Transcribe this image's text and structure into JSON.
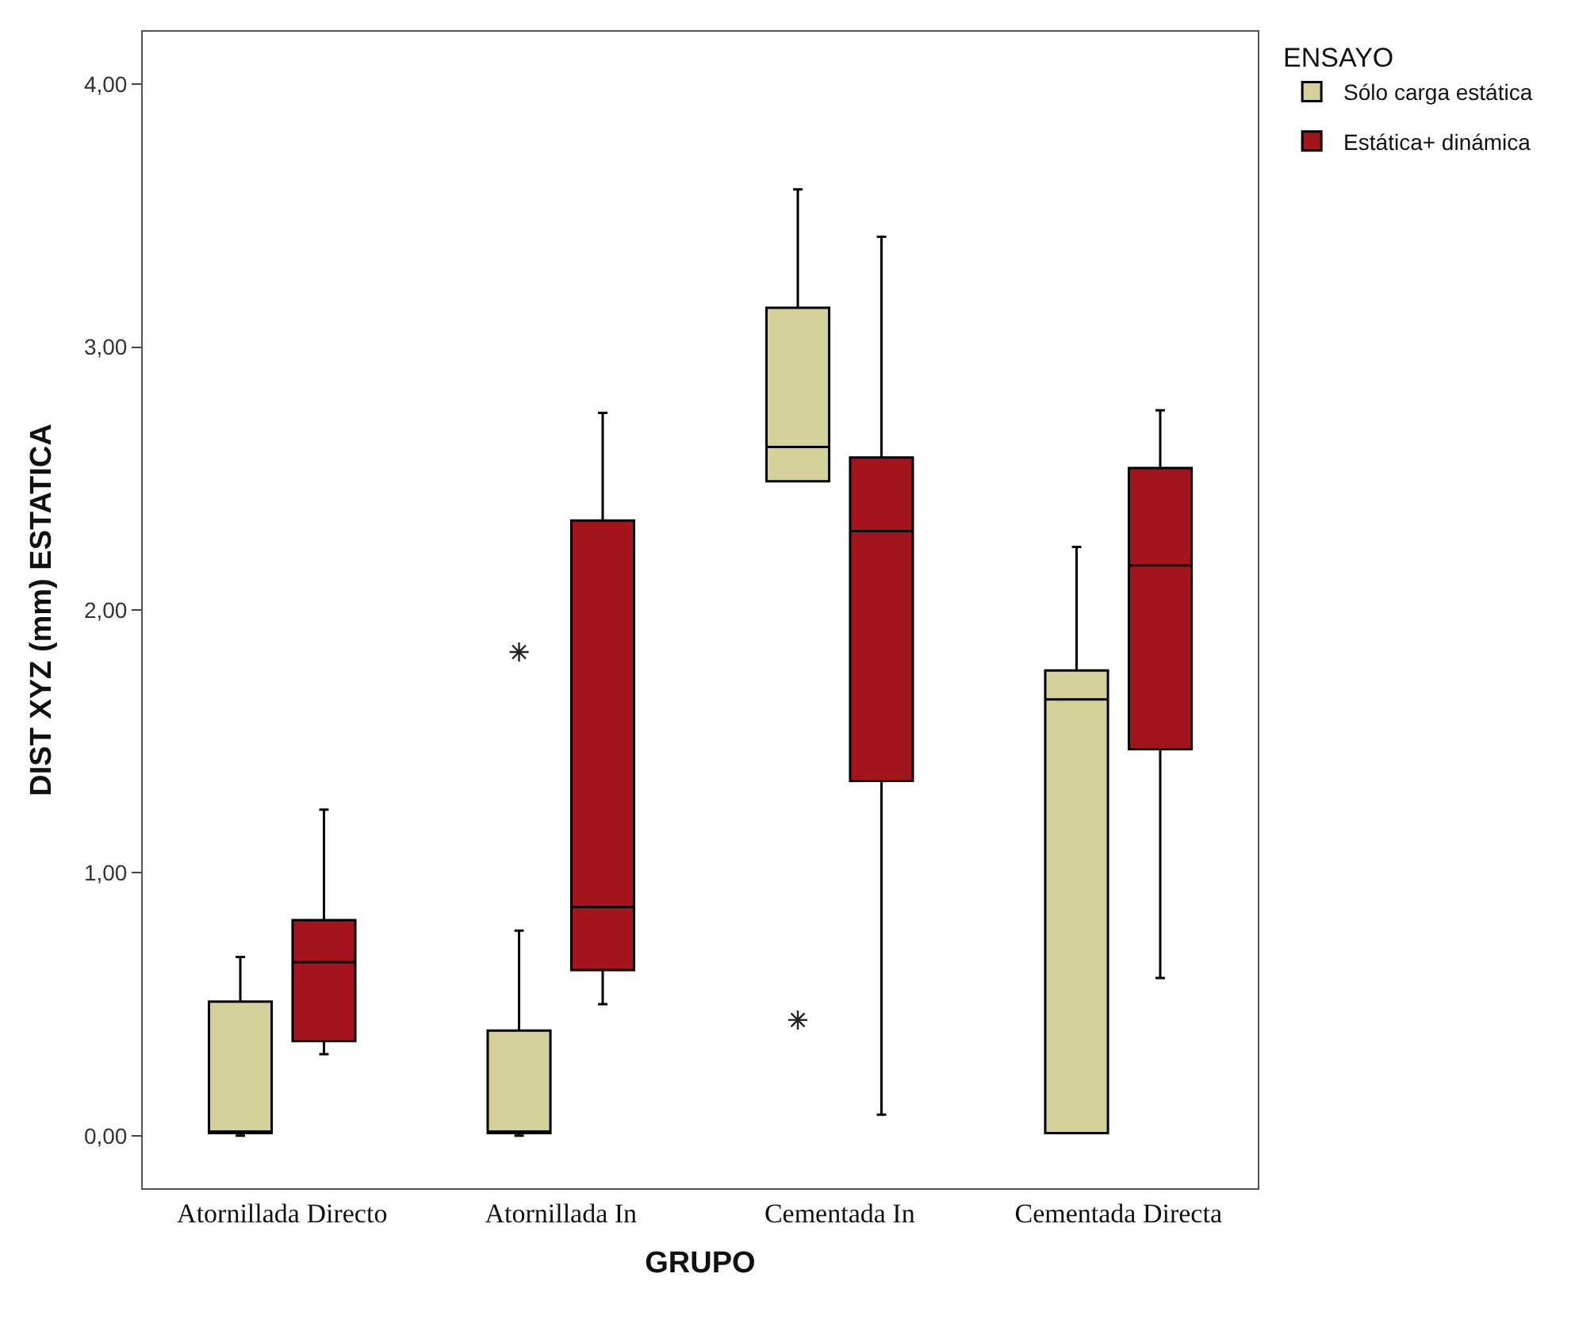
{
  "chart_data": {
    "type": "box",
    "xlabel": "GRUPO",
    "ylabel": "DIST XYZ (mm) ESTATICA",
    "legend_title": "ENSAYO",
    "categories": [
      "Atornillada Directo",
      "Atornillada In",
      "Cementada In",
      "Cementada Directa"
    ],
    "series": [
      {
        "name": "Sólo carga estática",
        "color": "#d4d09a",
        "boxes": [
          {
            "low": 0.0,
            "q1": 0.01,
            "median": 0.01,
            "q3": 0.51,
            "high": 0.68
          },
          {
            "low": 0.0,
            "q1": 0.01,
            "median": 0.01,
            "q3": 0.4,
            "high": 0.78,
            "outliers": [
              1.84
            ]
          },
          {
            "low": 2.49,
            "q1": 2.49,
            "median": 2.62,
            "q3": 3.15,
            "high": 3.6,
            "outliers": [
              0.44
            ]
          },
          {
            "low": 0.01,
            "q1": 0.01,
            "median": 1.66,
            "q3": 1.77,
            "high": 2.24
          }
        ]
      },
      {
        "name": "Estática+ dinámica",
        "color": "#a3141c",
        "boxes": [
          {
            "low": 0.31,
            "q1": 0.36,
            "median": 0.66,
            "q3": 0.82,
            "high": 1.24
          },
          {
            "low": 0.5,
            "q1": 0.63,
            "median": 0.87,
            "q3": 2.34,
            "high": 2.75
          },
          {
            "low": 0.08,
            "q1": 1.35,
            "median": 2.3,
            "q3": 2.58,
            "high": 3.42
          },
          {
            "low": 0.6,
            "q1": 1.47,
            "median": 2.17,
            "q3": 2.54,
            "high": 2.76
          }
        ]
      }
    ],
    "ylim": [
      -0.2,
      4.2
    ],
    "yticks": [
      {
        "value": 0,
        "label": "0,00"
      },
      {
        "value": 1,
        "label": "1,00"
      },
      {
        "value": 2,
        "label": "2,00"
      },
      {
        "value": 3,
        "label": "3,00"
      },
      {
        "value": 4,
        "label": "4,00"
      }
    ],
    "legend": "top right",
    "marker": "star"
  }
}
